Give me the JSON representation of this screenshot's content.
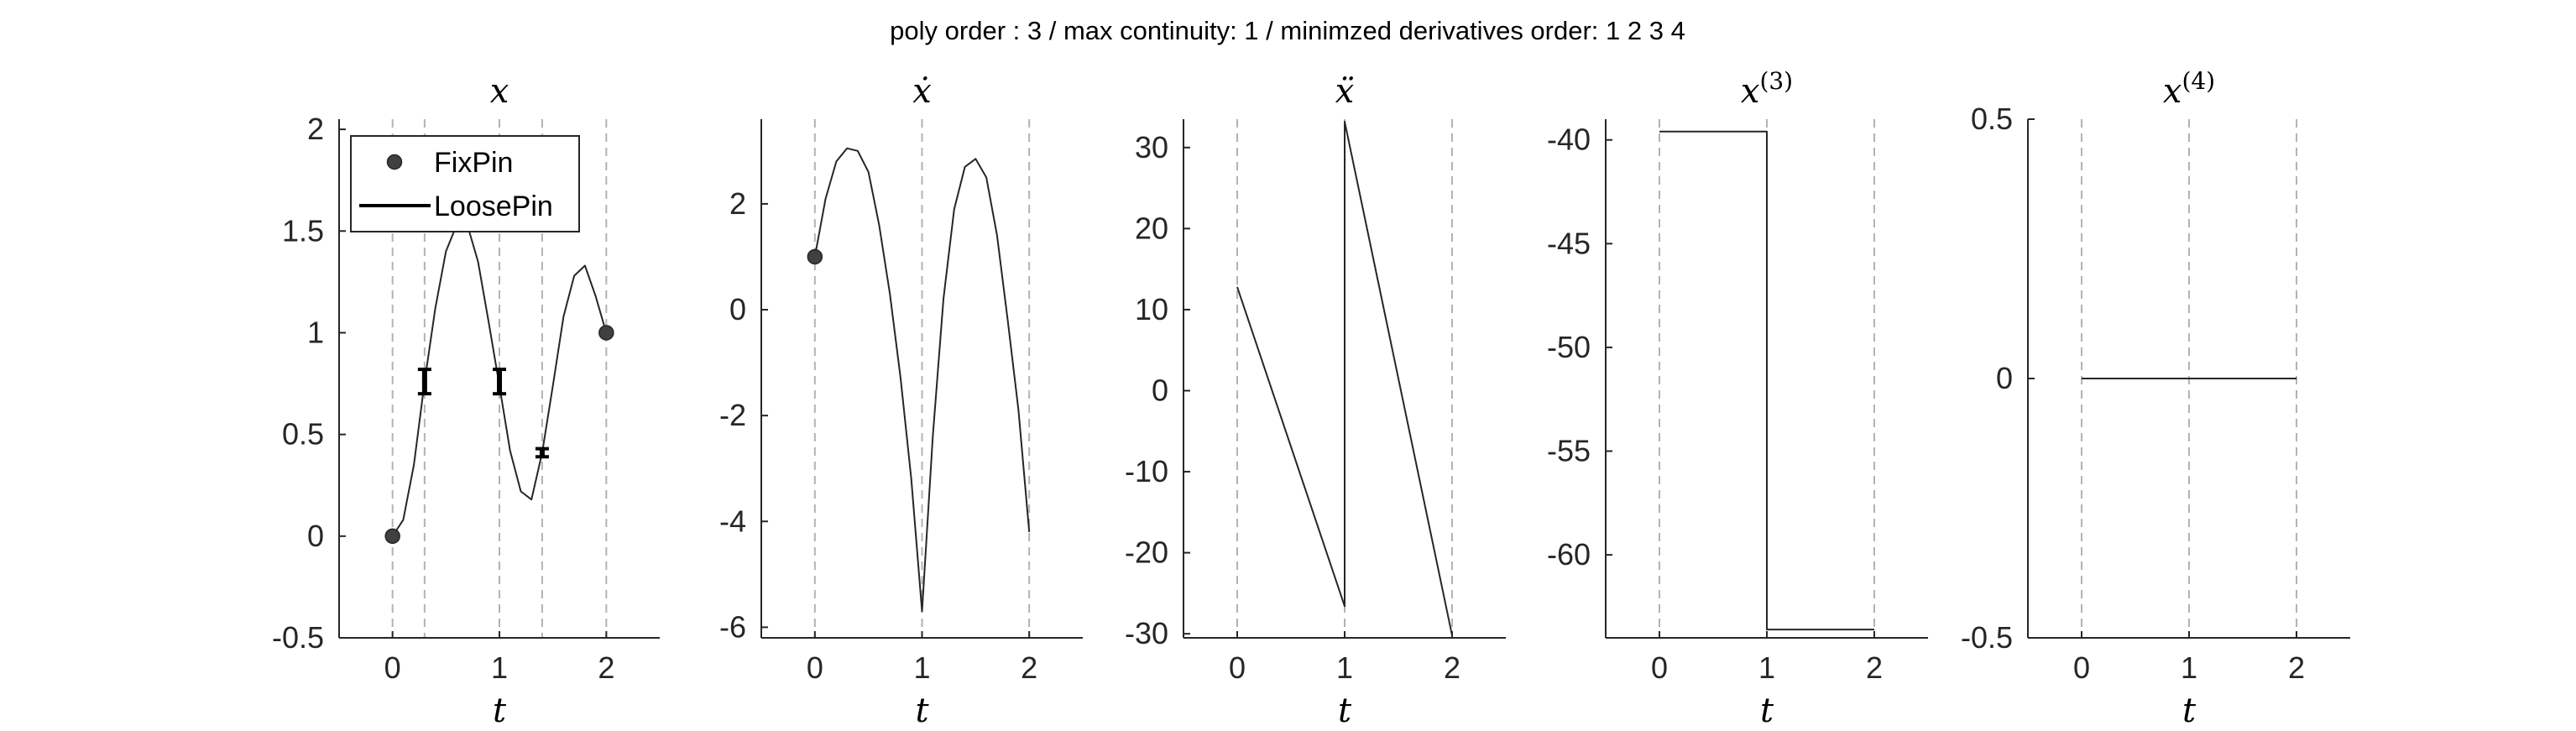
{
  "figure_title": "poly order : 3 / max continuity: 1 / minimzed derivatives order: 1  2  3  4",
  "colors": {
    "axis": "#262626",
    "curve": "#262626",
    "knot_line": "#b3b3b3",
    "marker": "#262626"
  },
  "legend": {
    "placement": "top-left",
    "entries": [
      "FixPin",
      "LoosePin"
    ]
  },
  "chart_data": [
    {
      "type": "line",
      "title": "x",
      "xlabel": "t",
      "ylabel": "",
      "xlim": [
        -0.5,
        2.5
      ],
      "ylim": [
        -0.5,
        2.05
      ],
      "xticks": [
        0,
        1,
        2
      ],
      "yticks": [
        -0.5,
        0,
        0.5,
        1,
        1.5,
        2
      ],
      "ytick_labels": [
        "-0.5",
        "0",
        "0.5",
        "1",
        "1.5",
        "2"
      ],
      "knot_lines": [
        0,
        0.3,
        1,
        1.4,
        2
      ],
      "series": [
        {
          "x": [
            0,
            0.1,
            0.2,
            0.3,
            0.4,
            0.5,
            0.6,
            0.7,
            0.8,
            0.9,
            1.0,
            1.1,
            1.2,
            1.3,
            1.4,
            1.5,
            1.6,
            1.7,
            1.8,
            1.9,
            2.0
          ],
          "y": [
            0,
            0.08,
            0.35,
            0.76,
            1.12,
            1.4,
            1.53,
            1.53,
            1.35,
            1.05,
            0.74,
            0.42,
            0.22,
            0.18,
            0.41,
            0.74,
            1.08,
            1.28,
            1.33,
            1.18,
            1.0
          ]
        }
      ],
      "fix_pins": [
        {
          "x": 0,
          "y": 0
        },
        {
          "x": 2,
          "y": 1
        }
      ],
      "loose_pins": [
        {
          "x": 0.3,
          "low": 0.7,
          "high": 0.82
        },
        {
          "x": 1.0,
          "low": 0.7,
          "high": 0.82
        },
        {
          "x": 1.4,
          "low": 0.39,
          "high": 0.43
        }
      ]
    },
    {
      "type": "line",
      "title": "ẋ",
      "xlabel": "t",
      "ylabel": "",
      "xlim": [
        -0.5,
        2.5
      ],
      "ylim": [
        -6.2,
        3.6
      ],
      "xticks": [
        0,
        1,
        2
      ],
      "yticks": [
        -6,
        -4,
        -2,
        0,
        2
      ],
      "ytick_labels": [
        "-6",
        "-4",
        "-2",
        "0",
        "2"
      ],
      "knot_lines": [
        0,
        1,
        2
      ],
      "series": [
        {
          "x": [
            0,
            0.1,
            0.2,
            0.3,
            0.4,
            0.5,
            0.6,
            0.7,
            0.8,
            0.9,
            1.0,
            1.1,
            1.2,
            1.3,
            1.4,
            1.5,
            1.6,
            1.7,
            1.8,
            1.9,
            2.0
          ],
          "y": [
            1.0,
            2.1,
            2.8,
            3.05,
            3.0,
            2.6,
            1.6,
            0.3,
            -1.3,
            -3.2,
            -5.7,
            -2.4,
            0.2,
            1.9,
            2.7,
            2.85,
            2.5,
            1.4,
            -0.2,
            -1.9,
            -4.2
          ]
        }
      ],
      "fix_pins": [
        {
          "x": 0,
          "y": 1.0
        }
      ],
      "loose_pins": []
    },
    {
      "type": "line",
      "title": "ẍ",
      "xlabel": "t",
      "ylabel": "",
      "xlim": [
        -0.5,
        2.5
      ],
      "ylim": [
        -30.5,
        33.5
      ],
      "xticks": [
        0,
        1,
        2
      ],
      "yticks": [
        -30,
        -20,
        -10,
        0,
        10,
        20,
        30
      ],
      "ytick_labels": [
        "-30",
        "-20",
        "-10",
        "0",
        "10",
        "20",
        "30"
      ],
      "knot_lines": [
        0,
        1,
        2
      ],
      "series": [
        {
          "x": [
            0,
            1,
            1,
            2
          ],
          "y": [
            12.8,
            -26.6,
            33.2,
            -30.2
          ]
        }
      ],
      "fix_pins": [],
      "loose_pins": []
    },
    {
      "type": "line",
      "title": "x(3)",
      "xlabel": "t",
      "ylabel": "",
      "xlim": [
        -0.5,
        2.5
      ],
      "ylim": [
        -64,
        -39
      ],
      "xticks": [
        0,
        1,
        2
      ],
      "yticks": [
        -60,
        -55,
        -50,
        -45,
        -40
      ],
      "ytick_labels": [
        "-60",
        "-55",
        "-50",
        "-45",
        "-40"
      ],
      "knot_lines": [
        0,
        1,
        2
      ],
      "series": [
        {
          "x": [
            0,
            1,
            1,
            2
          ],
          "y": [
            -39.6,
            -39.6,
            -63.6,
            -63.6
          ]
        }
      ],
      "fix_pins": [],
      "loose_pins": []
    },
    {
      "type": "line",
      "title": "x(4)",
      "xlabel": "t",
      "ylabel": "",
      "xlim": [
        -0.5,
        2.5
      ],
      "ylim": [
        -0.5,
        0.5
      ],
      "xticks": [
        0,
        1,
        2
      ],
      "yticks": [
        -0.5,
        0,
        0.5
      ],
      "ytick_labels": [
        "-0.5",
        "0",
        "0.5"
      ],
      "knot_lines": [
        0,
        1,
        2
      ],
      "series": [
        {
          "x": [
            0,
            2
          ],
          "y": [
            0,
            0
          ]
        }
      ],
      "fix_pins": [],
      "loose_pins": []
    }
  ]
}
